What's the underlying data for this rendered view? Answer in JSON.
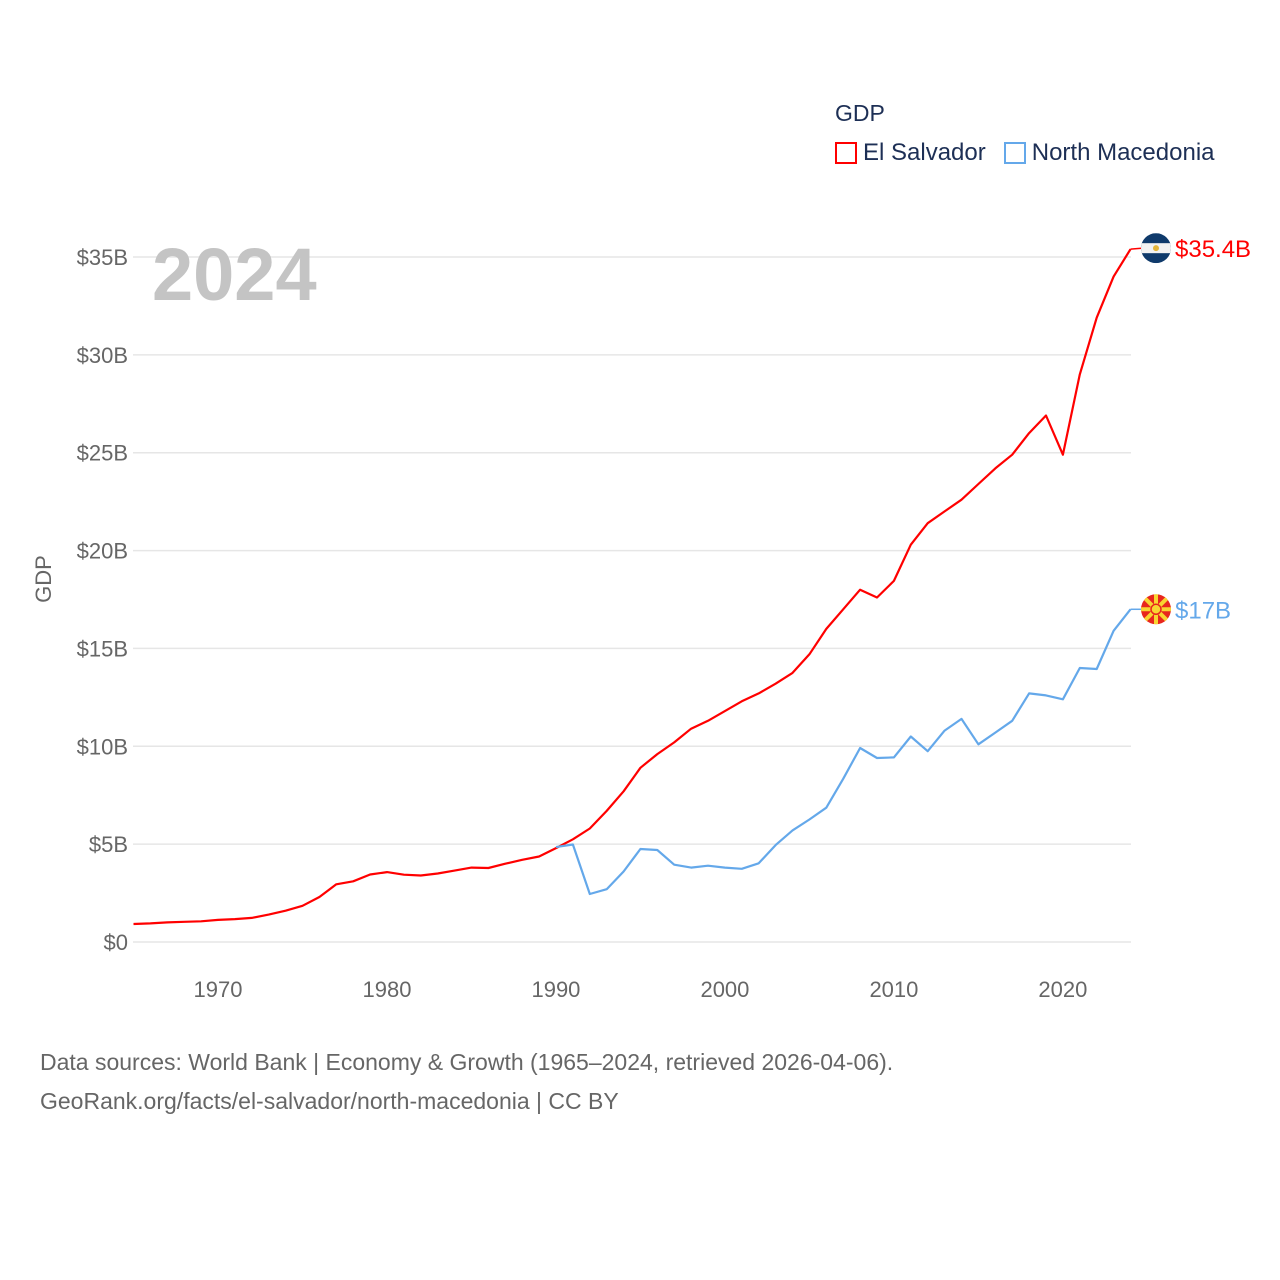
{
  "chart_data": {
    "type": "line",
    "title": "",
    "legend_title": "GDP",
    "legend_position": "top-right",
    "ylabel": "GDP",
    "xlabel": "",
    "year_watermark": "2024",
    "xlim": [
      1965,
      2024
    ],
    "ylim": [
      0,
      35
    ],
    "grid": true,
    "x_ticks": [
      1970,
      1980,
      1990,
      2000,
      2010,
      2020
    ],
    "y_ticks": [
      0,
      5,
      10,
      15,
      20,
      25,
      30,
      35
    ],
    "y_tick_labels": [
      "$0",
      "$5B",
      "$10B",
      "$15B",
      "$20B",
      "$25B",
      "$30B",
      "$35B"
    ],
    "series": [
      {
        "name": "El Salvador",
        "color": "#ff0000",
        "end_label": "$35.4B",
        "flag": "el-salvador-flag",
        "x": [
          1965,
          1966,
          1967,
          1968,
          1969,
          1970,
          1971,
          1972,
          1973,
          1974,
          1975,
          1976,
          1977,
          1978,
          1979,
          1980,
          1981,
          1982,
          1983,
          1984,
          1985,
          1986,
          1987,
          1988,
          1989,
          1990,
          1991,
          1992,
          1993,
          1994,
          1995,
          1996,
          1997,
          1998,
          1999,
          2000,
          2001,
          2002,
          2003,
          2004,
          2005,
          2006,
          2007,
          2008,
          2009,
          2010,
          2011,
          2012,
          2013,
          2014,
          2015,
          2016,
          2017,
          2018,
          2019,
          2020,
          2021,
          2022,
          2023,
          2024
        ],
        "values": [
          0.92,
          0.95,
          1.0,
          1.03,
          1.06,
          1.13,
          1.17,
          1.23,
          1.4,
          1.6,
          1.85,
          2.3,
          2.95,
          3.1,
          3.45,
          3.57,
          3.44,
          3.4,
          3.5,
          3.65,
          3.8,
          3.78,
          4.0,
          4.2,
          4.37,
          4.8,
          5.25,
          5.8,
          6.7,
          7.7,
          8.9,
          9.6,
          10.2,
          10.9,
          11.3,
          11.8,
          12.3,
          12.7,
          13.2,
          13.75,
          14.7,
          16.0,
          17.0,
          18.0,
          17.6,
          18.45,
          20.3,
          21.4,
          22.0,
          22.6,
          23.4,
          24.2,
          24.9,
          26.0,
          26.9,
          24.9,
          29.0,
          31.9,
          34.0,
          35.4
        ]
      },
      {
        "name": "North Macedonia",
        "color": "#64a8ea",
        "end_label": "$17B",
        "flag": "north-macedonia-flag",
        "x": [
          1990,
          1991,
          1992,
          1993,
          1994,
          1995,
          1996,
          1997,
          1998,
          1999,
          2000,
          2001,
          2002,
          2003,
          2004,
          2005,
          2006,
          2007,
          2008,
          2009,
          2010,
          2011,
          2012,
          2013,
          2014,
          2015,
          2016,
          2017,
          2018,
          2019,
          2020,
          2021,
          2022,
          2023,
          2024
        ],
        "values": [
          4.85,
          4.98,
          2.45,
          2.7,
          3.6,
          4.75,
          4.7,
          3.95,
          3.8,
          3.9,
          3.8,
          3.74,
          4.02,
          4.95,
          5.7,
          6.26,
          6.86,
          8.34,
          9.91,
          9.4,
          9.43,
          10.5,
          9.75,
          10.8,
          11.4,
          10.1,
          10.7,
          11.3,
          12.7,
          12.6,
          12.4,
          14.0,
          13.95,
          15.9,
          17.0
        ]
      }
    ]
  },
  "footer": {
    "line1": "Data sources: World Bank | Economy & Growth (1965–2024, retrieved 2026-04-06).",
    "line2": "GeoRank.org/facts/el-salvador/north-macedonia | CC BY"
  }
}
